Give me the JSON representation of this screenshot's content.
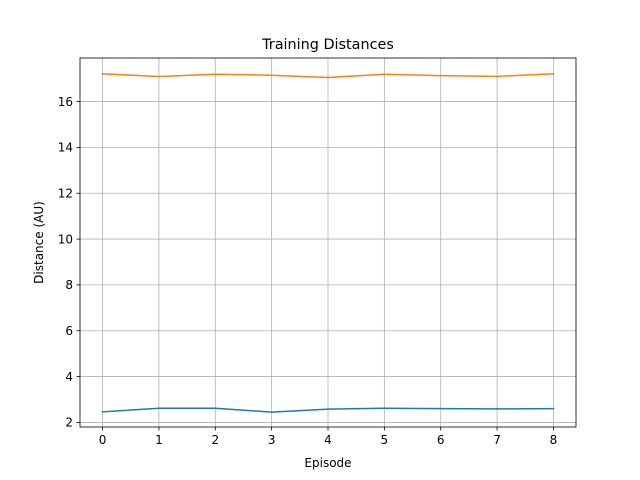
{
  "chart_data": {
    "type": "line",
    "title": "Training Distances",
    "xlabel": "Episode",
    "ylabel": "Distance (AU)",
    "x": [
      0,
      1,
      2,
      3,
      4,
      5,
      6,
      7,
      8
    ],
    "xlim": [
      -0.4,
      8.4
    ],
    "ylim": [
      1.8,
      17.9
    ],
    "xticks": [
      0,
      1,
      2,
      3,
      4,
      5,
      6,
      7,
      8
    ],
    "yticks": [
      2,
      4,
      6,
      8,
      10,
      12,
      14,
      16
    ],
    "grid": true,
    "series": [
      {
        "color": "#1f77b4",
        "values": [
          2.46,
          2.62,
          2.62,
          2.45,
          2.58,
          2.62,
          2.6,
          2.59,
          2.6
        ]
      },
      {
        "color": "#ff7f0e",
        "values": [
          17.21,
          17.09,
          17.19,
          17.15,
          17.05,
          17.19,
          17.13,
          17.1,
          17.21
        ]
      }
    ]
  }
}
